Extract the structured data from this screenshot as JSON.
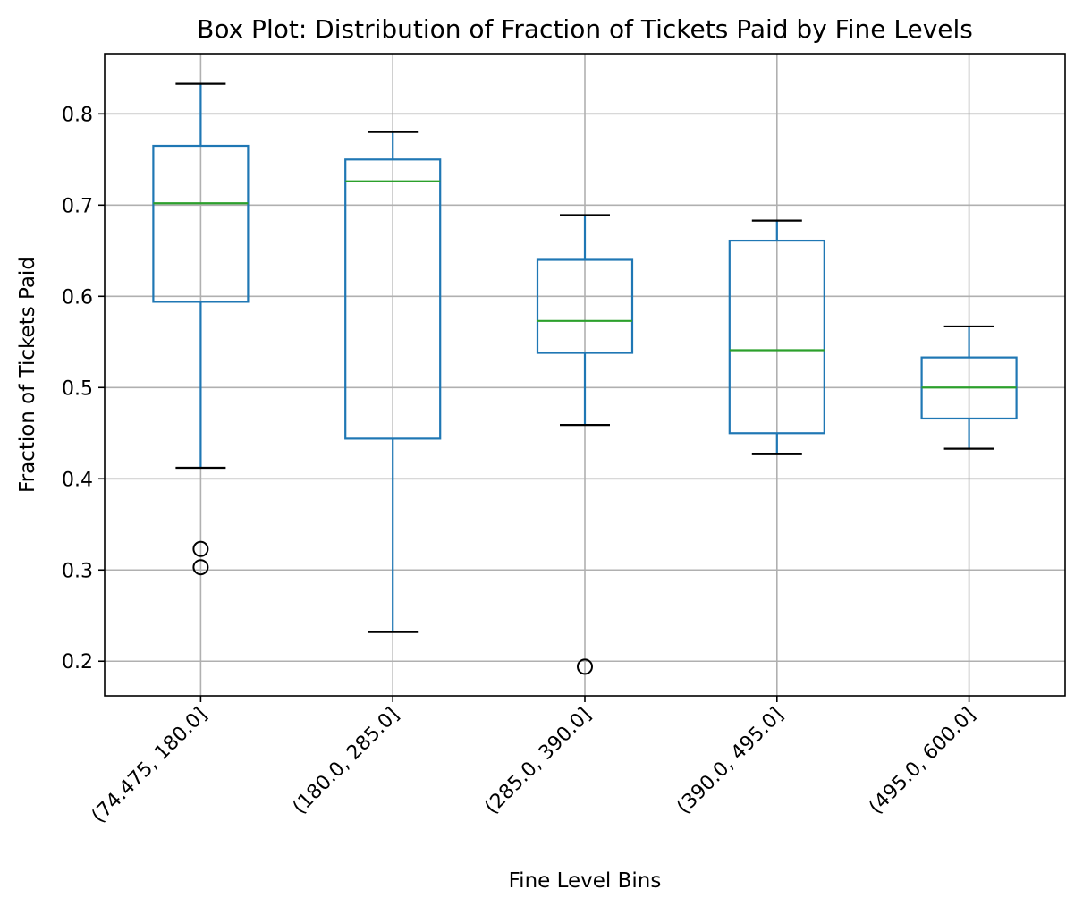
{
  "chart_data": {
    "type": "box",
    "title": "Box Plot: Distribution of Fraction of Tickets Paid by Fine Levels",
    "xlabel": "Fine Level Bins",
    "ylabel": "Fraction of Tickets Paid",
    "ylim": [
      0.162,
      0.866
    ],
    "yticks": [
      0.2,
      0.3,
      0.4,
      0.5,
      0.6,
      0.7,
      0.8
    ],
    "ytick_labels": [
      "0.2",
      "0.3",
      "0.4",
      "0.5",
      "0.6",
      "0.7",
      "0.8"
    ],
    "grid": true,
    "categories": [
      "(74.475, 180.0]",
      "(180.0, 285.0]",
      "(285.0, 390.0]",
      "(390.0, 495.0]",
      "(495.0, 600.0]"
    ],
    "boxes": [
      {
        "whisker_low": 0.412,
        "q1": 0.594,
        "median": 0.702,
        "q3": 0.765,
        "whisker_high": 0.833,
        "outliers": [
          0.323,
          0.303
        ]
      },
      {
        "whisker_low": 0.232,
        "q1": 0.444,
        "median": 0.726,
        "q3": 0.75,
        "whisker_high": 0.78,
        "outliers": []
      },
      {
        "whisker_low": 0.459,
        "q1": 0.538,
        "median": 0.573,
        "q3": 0.64,
        "whisker_high": 0.689,
        "outliers": [
          0.194
        ]
      },
      {
        "whisker_low": 0.427,
        "q1": 0.45,
        "median": 0.541,
        "q3": 0.661,
        "whisker_high": 0.683,
        "outliers": []
      },
      {
        "whisker_low": 0.433,
        "q1": 0.466,
        "median": 0.5,
        "q3": 0.533,
        "whisker_high": 0.567,
        "outliers": []
      }
    ],
    "colors": {
      "box": "#1f77b4",
      "median": "#2ca02c",
      "cap": "#000000",
      "outlier": "#000000",
      "grid": "#b0b0b0",
      "frame": "#000000"
    }
  }
}
